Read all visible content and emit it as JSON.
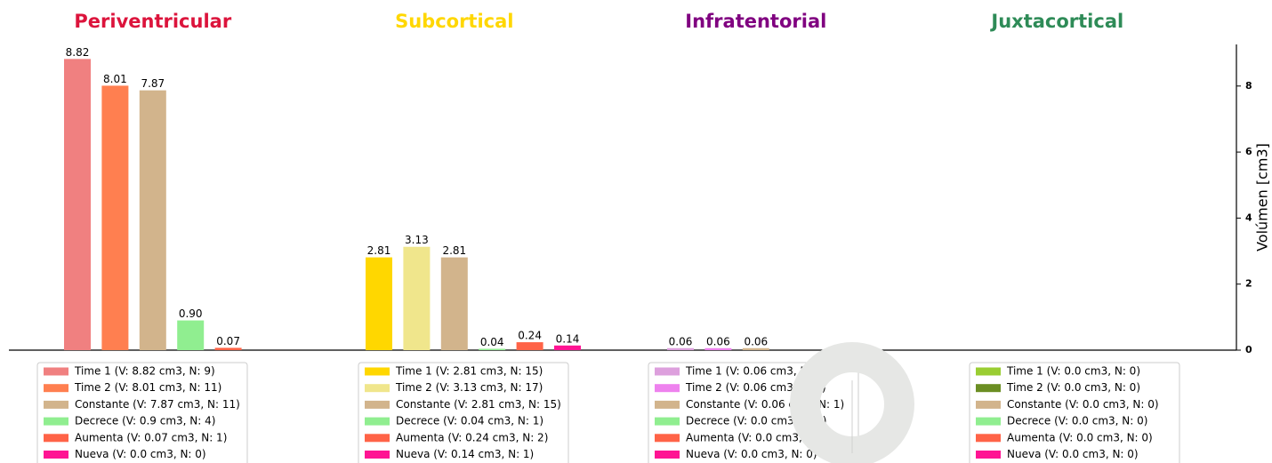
{
  "chart_data": {
    "type": "bar",
    "y_label": "Volúmen [cm3]",
    "ylim": [
      0,
      9.26
    ],
    "yticks": [
      0,
      2,
      4,
      6,
      8
    ],
    "groups": [
      {
        "title": "Periventricular",
        "title_color": "#dc143c",
        "values": [
          8.82,
          8.01,
          7.87,
          0.9,
          0.07,
          0.0
        ],
        "value_labels": [
          "8.82",
          "8.01",
          "7.87",
          "0.90",
          "0.07",
          null
        ],
        "colors": [
          "#f08080",
          "#ff7f50",
          "#d2b48c",
          "#90ee90",
          "#ff6347",
          "#ff1493"
        ],
        "legend": [
          "Time 1 (V: 8.82 cm3, N: 9)",
          "Time 2 (V: 8.01 cm3, N: 11)",
          "Constante (V: 7.87 cm3, N: 11)",
          "Decrece (V: 0.9 cm3, N: 4)",
          "Aumenta (V: 0.07 cm3, N: 1)",
          "Nueva (V: 0.0 cm3, N: 0)"
        ]
      },
      {
        "title": "Subcortical",
        "title_color": "#ffd700",
        "values": [
          2.81,
          3.13,
          2.81,
          0.04,
          0.24,
          0.14
        ],
        "value_labels": [
          "2.81",
          "3.13",
          "2.81",
          "0.04",
          "0.24",
          "0.14"
        ],
        "colors": [
          "#ffd700",
          "#f0e68c",
          "#d2b48c",
          "#90ee90",
          "#ff6347",
          "#ff1493"
        ],
        "legend": [
          "Time 1 (V: 2.81 cm3, N: 15)",
          "Time 2 (V: 3.13 cm3, N: 17)",
          "Constante (V: 2.81 cm3, N: 15)",
          "Decrece (V: 0.04 cm3, N: 1)",
          "Aumenta (V: 0.24 cm3, N: 2)",
          "Nueva (V: 0.14 cm3, N: 1)"
        ]
      },
      {
        "title": "Infratentorial",
        "title_color": "#800080",
        "values": [
          0.06,
          0.06,
          0.06,
          0.0,
          0.0,
          0.0
        ],
        "value_labels": [
          "0.06",
          "0.06",
          "0.06",
          null,
          null,
          null
        ],
        "colors": [
          "#dda0dd",
          "#ee82ee",
          "#d2b48c",
          "#90ee90",
          "#ff6347",
          "#ff1493"
        ],
        "legend": [
          "Time 1 (V: 0.06 cm3, N: 1)",
          "Time 2 (V: 0.06 cm3, N: 1)",
          "Constante (V: 0.06 cm3, N: 1)",
          "Decrece (V: 0.0 cm3, N: 0)",
          "Aumenta (V: 0.0 cm3, N: 0)",
          "Nueva (V: 0.0 cm3, N: 0)"
        ]
      },
      {
        "title": "Juxtacortical",
        "title_color": "#2e8b57",
        "values": [
          0.0,
          0.0,
          0.0,
          0.0,
          0.0,
          0.0
        ],
        "value_labels": [
          null,
          null,
          null,
          null,
          null,
          null
        ],
        "colors": [
          "#9acd32",
          "#6b8e23",
          "#d2b48c",
          "#90ee90",
          "#ff6347",
          "#ff1493"
        ],
        "legend": [
          "Time 1 (V: 0.0 cm3, N: 0)",
          "Time 2 (V: 0.0 cm3, N: 0)",
          "Constante (V: 0.0 cm3, N: 0)",
          "Decrece (V: 0.0 cm3, N: 0)",
          "Aumenta (V: 0.0 cm3, N: 0)",
          "Nueva (V: 0.0 cm3, N: 0)"
        ]
      }
    ]
  }
}
